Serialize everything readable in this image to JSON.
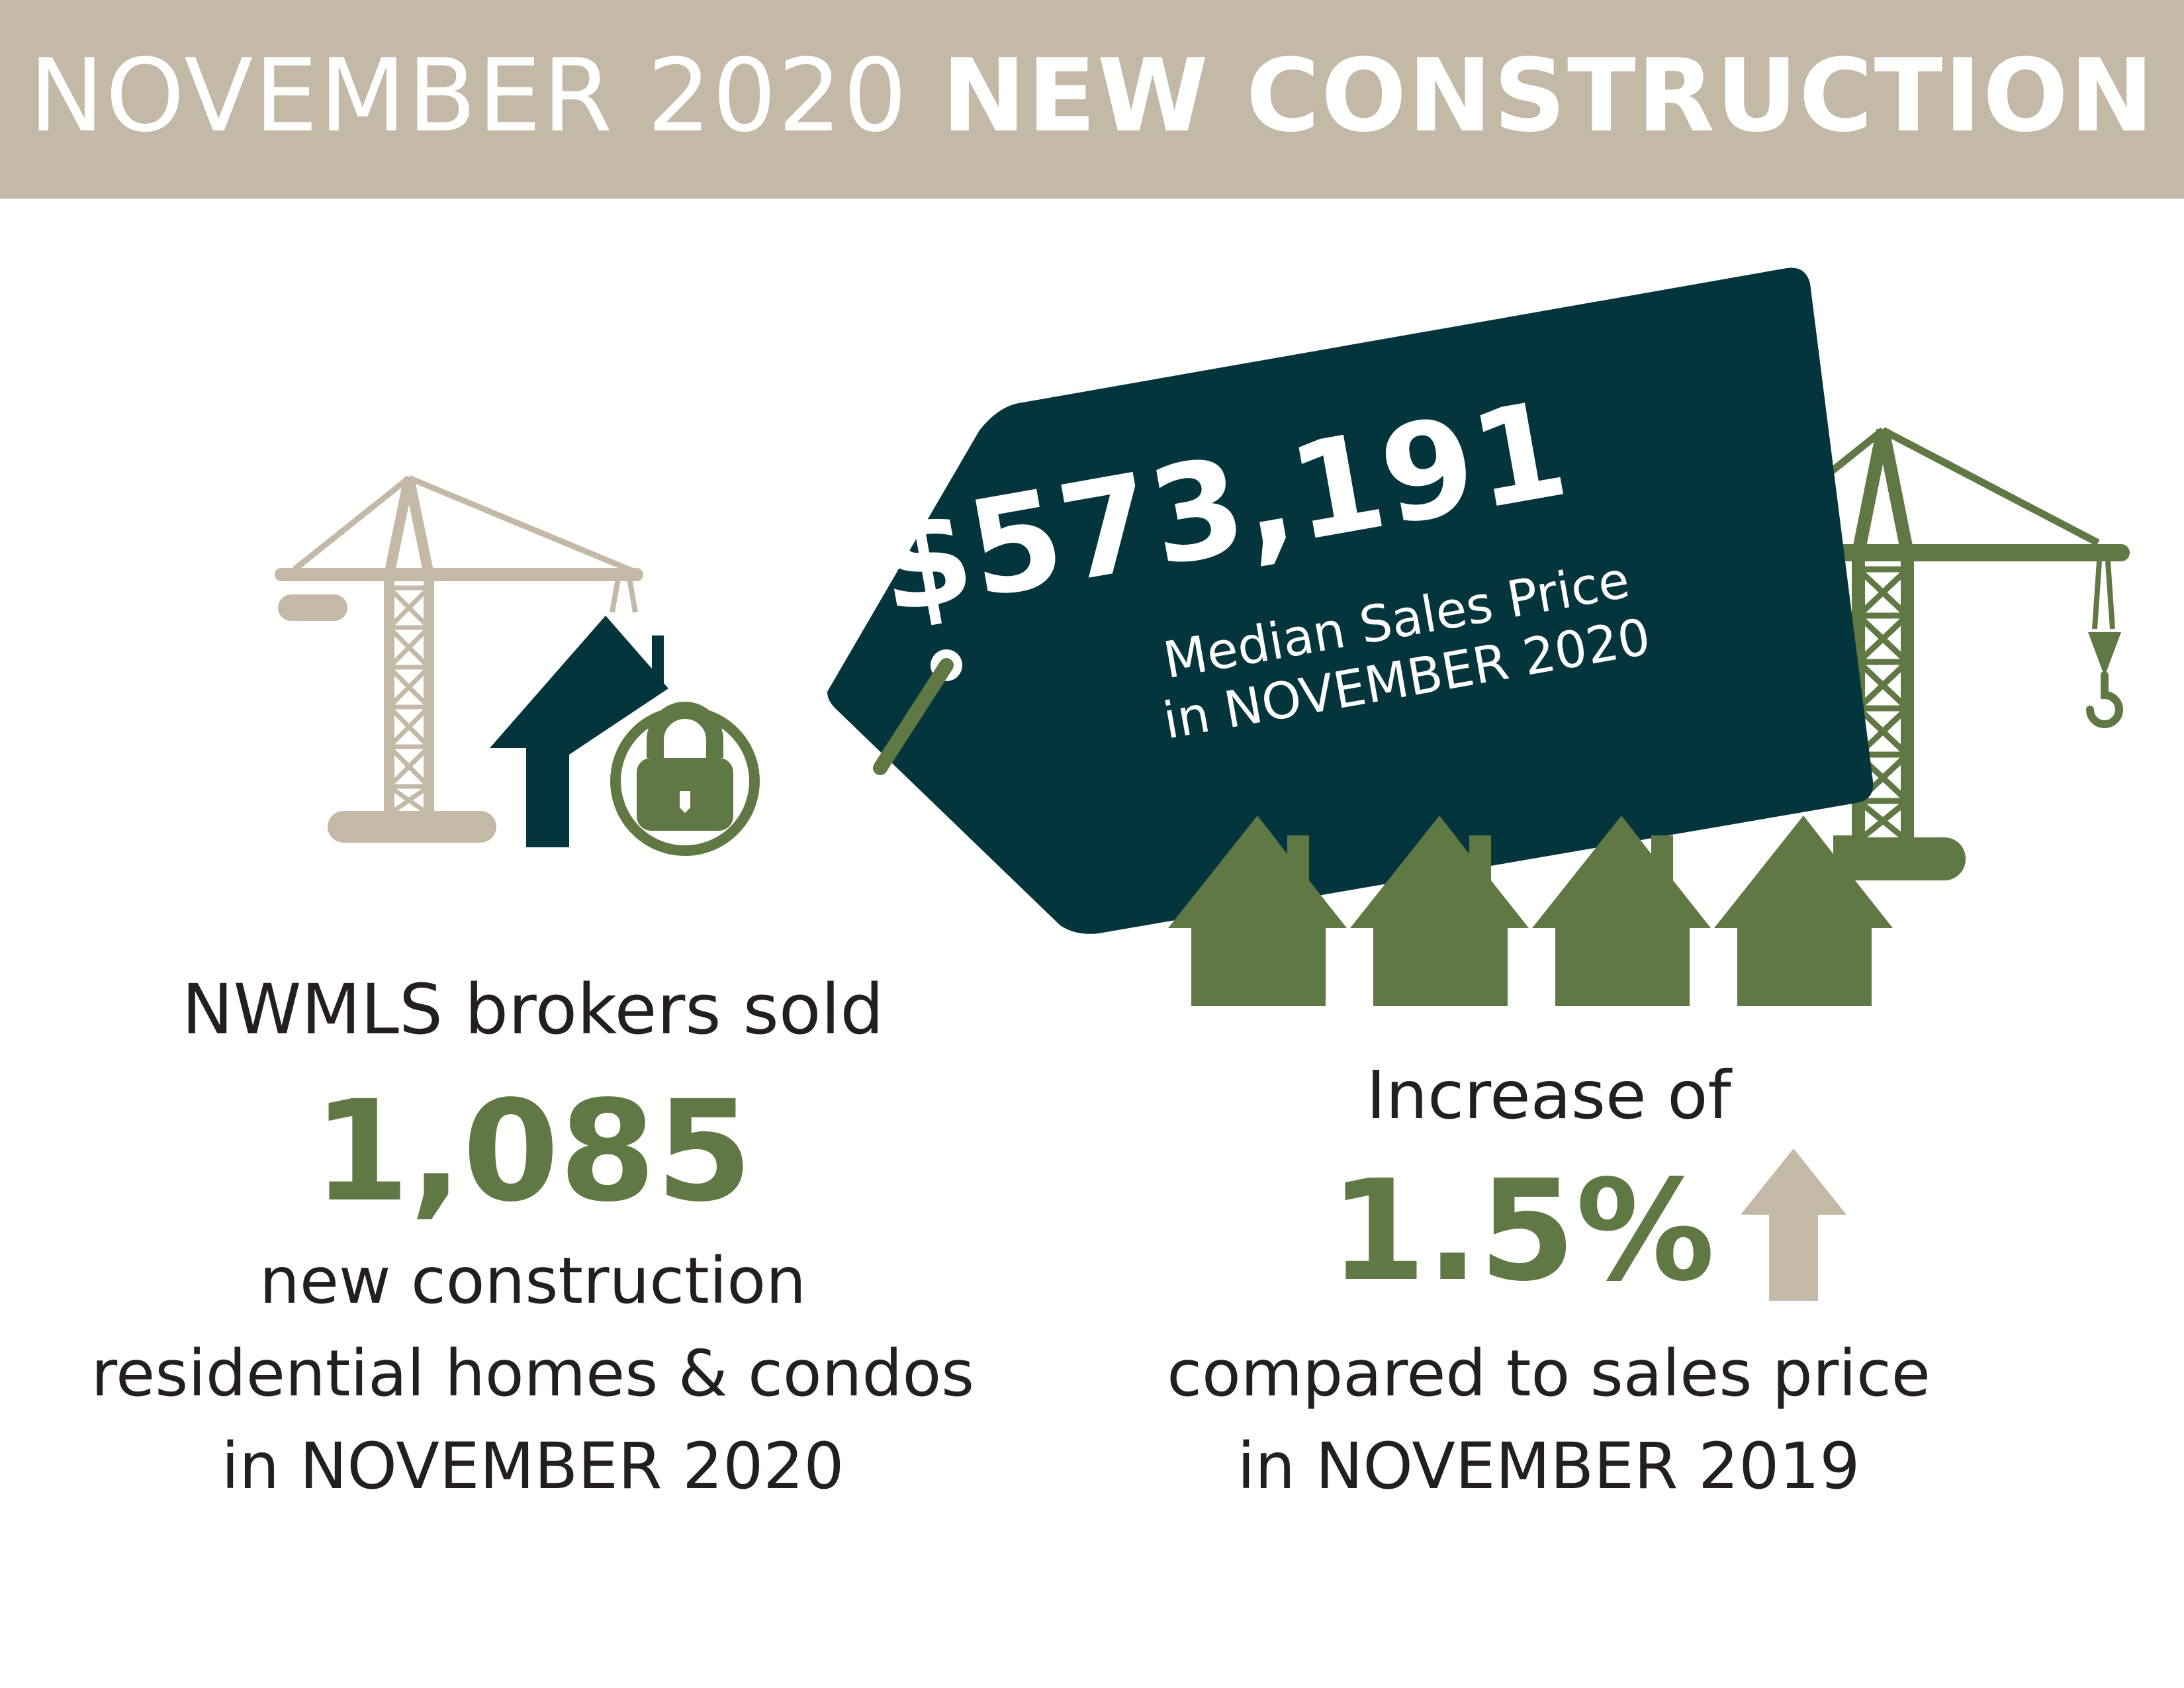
{
  "header": {
    "title_light": "NOVEMBER 2020",
    "title_bold": "NEW CONSTRUCTION"
  },
  "price_tag": {
    "value": "$573,191",
    "label_line1": "Median Sales Price",
    "label_line2": "in NOVEMBER 2020"
  },
  "left_stat": {
    "intro": "NWMLS brokers sold",
    "value": "1,085",
    "line1": "new construction",
    "line2": "residential homes & condos",
    "line3": "in NOVEMBER 2020"
  },
  "right_stat": {
    "intro": "Increase of",
    "value": "1.5%",
    "line1": "compared to sales price",
    "line2": "in NOVEMBER 2019"
  },
  "icons": {
    "left_crane": "tower-crane-icon",
    "house_lock": "house-lock-icon",
    "right_crane": "tower-crane-icon",
    "houses": "house-row-icon",
    "arrow": "up-arrow-icon"
  },
  "colors": {
    "header": "#c4b9a6",
    "tag": "#04353d",
    "green": "#607844",
    "tan": "#c4b9a6",
    "text": "#231f20"
  }
}
